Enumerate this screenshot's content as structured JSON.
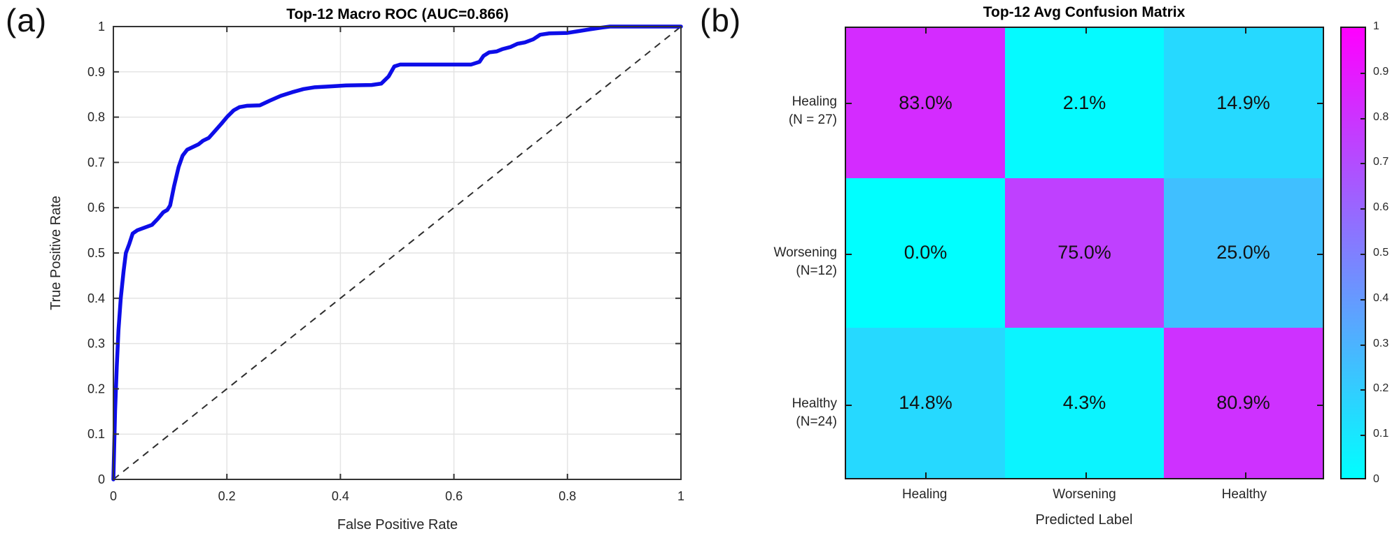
{
  "panels": {
    "a": "(a)",
    "b": "(b)"
  },
  "colors": {
    "roc_curve": "#0d0de8",
    "roc_diagonal": "#2e2e2e",
    "roc_grid": "#e4e4e4",
    "roc_axis": "#333333",
    "heatmap_low": "#00FFFF",
    "heatmap_high": "#FF00FF",
    "matrix_border": "#1a1a1a"
  },
  "chart_data": [
    {
      "type": "line",
      "panel": "(a)",
      "title": "Top-12 Macro ROC (AUC=0.866)",
      "xlabel": "False Positive Rate",
      "ylabel": "True Positive Rate",
      "auc": 0.866,
      "xlim": [
        0,
        1
      ],
      "ylim": [
        0,
        1
      ],
      "grid": true,
      "x_ticks": {
        "values": [
          0,
          0.2,
          0.4,
          0.6,
          0.8,
          1
        ],
        "labels": [
          "0",
          "0.2",
          "0.4",
          "0.6",
          "0.8",
          "1"
        ]
      },
      "y_ticks": {
        "values": [
          0,
          0.1,
          0.2,
          0.3,
          0.4,
          0.5,
          0.6,
          0.7,
          0.8,
          0.9,
          1
        ],
        "labels": [
          "0",
          "0.1",
          "0.2",
          "0.3",
          "0.4",
          "0.5",
          "0.6",
          "0.7",
          "0.8",
          "0.9",
          "1"
        ]
      },
      "series": [
        {
          "name": "Macro ROC curve",
          "style": "solid",
          "points": [
            [
              0,
              0
            ],
            [
              0.003,
              0.15
            ],
            [
              0.006,
              0.25
            ],
            [
              0.009,
              0.33
            ],
            [
              0.013,
              0.4
            ],
            [
              0.018,
              0.46
            ],
            [
              0.022,
              0.5
            ],
            [
              0.028,
              0.52
            ],
            [
              0.034,
              0.543
            ],
            [
              0.042,
              0.55
            ],
            [
              0.055,
              0.556
            ],
            [
              0.068,
              0.562
            ],
            [
              0.078,
              0.575
            ],
            [
              0.088,
              0.59
            ],
            [
              0.095,
              0.595
            ],
            [
              0.1,
              0.605
            ],
            [
              0.107,
              0.648
            ],
            [
              0.115,
              0.69
            ],
            [
              0.122,
              0.715
            ],
            [
              0.13,
              0.728
            ],
            [
              0.14,
              0.734
            ],
            [
              0.15,
              0.74
            ],
            [
              0.158,
              0.748
            ],
            [
              0.168,
              0.754
            ],
            [
              0.178,
              0.768
            ],
            [
              0.19,
              0.785
            ],
            [
              0.2,
              0.8
            ],
            [
              0.212,
              0.815
            ],
            [
              0.222,
              0.822
            ],
            [
              0.235,
              0.825
            ],
            [
              0.258,
              0.826
            ],
            [
              0.275,
              0.836
            ],
            [
              0.295,
              0.847
            ],
            [
              0.315,
              0.855
            ],
            [
              0.335,
              0.862
            ],
            [
              0.355,
              0.866
            ],
            [
              0.385,
              0.868
            ],
            [
              0.41,
              0.87
            ],
            [
              0.455,
              0.871
            ],
            [
              0.472,
              0.874
            ],
            [
              0.485,
              0.89
            ],
            [
              0.495,
              0.912
            ],
            [
              0.505,
              0.916
            ],
            [
              0.63,
              0.916
            ],
            [
              0.645,
              0.922
            ],
            [
              0.652,
              0.935
            ],
            [
              0.662,
              0.943
            ],
            [
              0.675,
              0.945
            ],
            [
              0.685,
              0.95
            ],
            [
              0.7,
              0.955
            ],
            [
              0.712,
              0.962
            ],
            [
              0.725,
              0.965
            ],
            [
              0.74,
              0.972
            ],
            [
              0.752,
              0.982
            ],
            [
              0.768,
              0.985
            ],
            [
              0.8,
              0.986
            ],
            [
              0.82,
              0.99
            ],
            [
              0.84,
              0.994
            ],
            [
              0.862,
              0.998
            ],
            [
              0.875,
              1.0
            ],
            [
              1.0,
              1.0
            ]
          ]
        },
        {
          "name": "Chance diagonal",
          "style": "dashed",
          "points": [
            [
              0,
              0
            ],
            [
              1,
              1
            ]
          ]
        }
      ]
    },
    {
      "type": "heatmap",
      "panel": "(b)",
      "title": "Top-12 Avg Confusion Matrix",
      "xlabel": "Predicted Label",
      "row_labels": [
        [
          "Healing",
          "(N = 27)"
        ],
        [
          "Worsening",
          "(N=12)"
        ],
        [
          "Healthy",
          "(N=24)"
        ]
      ],
      "col_labels": [
        "Healing",
        "Worsening",
        "Healthy"
      ],
      "values": [
        [
          0.83,
          0.021,
          0.149
        ],
        [
          0.0,
          0.75,
          0.25
        ],
        [
          0.148,
          0.043,
          0.809
        ]
      ],
      "cell_labels": [
        [
          "83.0%",
          "2.1%",
          "14.9%"
        ],
        [
          "0.0%",
          "75.0%",
          "25.0%"
        ],
        [
          "14.8%",
          "4.3%",
          "80.9%"
        ]
      ],
      "cell_colors": [
        [
          "#D42BFF",
          "#05FAFF",
          "#26D9FF"
        ],
        [
          "#00FFFF",
          "#BF40FF",
          "#40BFFF"
        ],
        [
          "#26D9FF",
          "#0BF4FF",
          "#CE31FF"
        ]
      ],
      "colormap": {
        "name": "cool",
        "low": "#00FFFF",
        "high": "#FF00FF"
      },
      "colorbar_ticks": {
        "values": [
          0,
          0.1,
          0.2,
          0.3,
          0.4,
          0.5,
          0.6,
          0.7,
          0.8,
          0.9,
          1
        ],
        "labels": [
          "0",
          "0.1",
          "0.2",
          "0.3",
          "0.4",
          "0.5",
          "0.6",
          "0.7",
          "0.8",
          "0.9",
          "1"
        ]
      }
    }
  ]
}
